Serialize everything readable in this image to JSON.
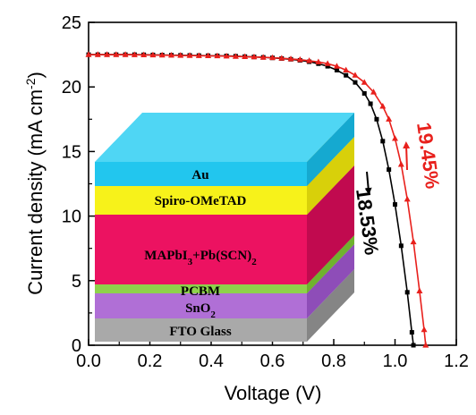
{
  "chart_data": {
    "type": "line",
    "xlabel": "Voltage (V)",
    "ylabel_main": "Current density (mA cm",
    "ylabel_sup": "-2",
    "ylabel_close": ")",
    "xlim": [
      0.0,
      1.2
    ],
    "ylim": [
      0,
      25
    ],
    "xticks": [
      "0.0",
      "0.2",
      "0.4",
      "0.6",
      "0.8",
      "1.0",
      "1.2"
    ],
    "yticks": [
      "0",
      "5",
      "10",
      "15",
      "20",
      "25"
    ],
    "grid": false,
    "series": [
      {
        "label": "18.53%",
        "color": "#000000",
        "marker": "square",
        "points": [
          [
            0.0,
            22.5
          ],
          [
            0.03,
            22.5
          ],
          [
            0.06,
            22.5
          ],
          [
            0.09,
            22.5
          ],
          [
            0.12,
            22.5
          ],
          [
            0.15,
            22.5
          ],
          [
            0.18,
            22.49
          ],
          [
            0.21,
            22.48
          ],
          [
            0.24,
            22.47
          ],
          [
            0.27,
            22.46
          ],
          [
            0.3,
            22.45
          ],
          [
            0.33,
            22.44
          ],
          [
            0.36,
            22.43
          ],
          [
            0.39,
            22.42
          ],
          [
            0.42,
            22.41
          ],
          [
            0.45,
            22.4
          ],
          [
            0.48,
            22.38
          ],
          [
            0.51,
            22.35
          ],
          [
            0.54,
            22.32
          ],
          [
            0.57,
            22.29
          ],
          [
            0.6,
            22.25
          ],
          [
            0.63,
            22.2
          ],
          [
            0.66,
            22.14
          ],
          [
            0.69,
            22.06
          ],
          [
            0.72,
            21.95
          ],
          [
            0.75,
            21.8
          ],
          [
            0.78,
            21.6
          ],
          [
            0.81,
            21.3
          ],
          [
            0.84,
            20.9
          ],
          [
            0.87,
            20.35
          ],
          [
            0.9,
            19.5
          ],
          [
            0.92,
            18.7
          ],
          [
            0.94,
            17.5
          ],
          [
            0.96,
            15.8
          ],
          [
            0.98,
            13.6
          ],
          [
            1.0,
            10.9
          ],
          [
            1.02,
            7.7
          ],
          [
            1.04,
            4.1
          ],
          [
            1.055,
            1.0
          ],
          [
            1.06,
            0.0
          ]
        ]
      },
      {
        "label": "19.45%",
        "color": "#e8201c",
        "marker": "triangle",
        "points": [
          [
            0.0,
            22.5
          ],
          [
            0.03,
            22.5
          ],
          [
            0.06,
            22.5
          ],
          [
            0.09,
            22.5
          ],
          [
            0.12,
            22.5
          ],
          [
            0.15,
            22.49
          ],
          [
            0.18,
            22.48
          ],
          [
            0.21,
            22.47
          ],
          [
            0.24,
            22.46
          ],
          [
            0.27,
            22.45
          ],
          [
            0.3,
            22.44
          ],
          [
            0.33,
            22.43
          ],
          [
            0.36,
            22.42
          ],
          [
            0.39,
            22.41
          ],
          [
            0.42,
            22.4
          ],
          [
            0.45,
            22.38
          ],
          [
            0.48,
            22.36
          ],
          [
            0.51,
            22.34
          ],
          [
            0.54,
            22.32
          ],
          [
            0.57,
            22.29
          ],
          [
            0.6,
            22.26
          ],
          [
            0.63,
            22.22
          ],
          [
            0.66,
            22.17
          ],
          [
            0.69,
            22.11
          ],
          [
            0.72,
            22.03
          ],
          [
            0.75,
            21.93
          ],
          [
            0.78,
            21.8
          ],
          [
            0.81,
            21.6
          ],
          [
            0.84,
            21.3
          ],
          [
            0.87,
            20.9
          ],
          [
            0.9,
            20.35
          ],
          [
            0.93,
            19.6
          ],
          [
            0.96,
            18.5
          ],
          [
            0.98,
            17.5
          ],
          [
            1.0,
            16.0
          ],
          [
            1.02,
            14.0
          ],
          [
            1.04,
            11.3
          ],
          [
            1.06,
            8.0
          ],
          [
            1.08,
            4.2
          ],
          [
            1.095,
            1.2
          ],
          [
            1.1,
            0.0
          ]
        ]
      }
    ],
    "annotations": [
      {
        "text": "18.53%",
        "color": "#000000"
      },
      {
        "text": "19.45%",
        "color": "#e8201c"
      }
    ]
  },
  "inset": {
    "layers": [
      {
        "name": "Au",
        "label": "Au",
        "front": "#22c6ee",
        "top": "#4fd6f4",
        "side": "#15a9d0"
      },
      {
        "name": "Spiro-OMeTAD",
        "label": "Spiro-OMeTAD",
        "front": "#f7f21a",
        "top": "#fbf76a",
        "side": "#d8d00a"
      },
      {
        "name": "Perovskite",
        "label_main": "MAPbI",
        "label_sub1": "3",
        "label_mid": "+Pb(SCN)",
        "label_sub2": "2",
        "front": "#ec1261",
        "top": "#f3498a",
        "side": "#c10a4f"
      },
      {
        "name": "PCBM",
        "label": "PCBM",
        "front": "#8ed24b",
        "top": "#acdf76",
        "side": "#6fb22f"
      },
      {
        "name": "SnO2",
        "label_main": "SnO",
        "label_sub": "2",
        "front": "#b06fd6",
        "top": "#c795e3",
        "side": "#8e4db8"
      },
      {
        "name": "FTO",
        "label": "FTO Glass",
        "front": "#a9a9a9",
        "top": "#c8c8c8",
        "side": "#858585"
      }
    ]
  }
}
